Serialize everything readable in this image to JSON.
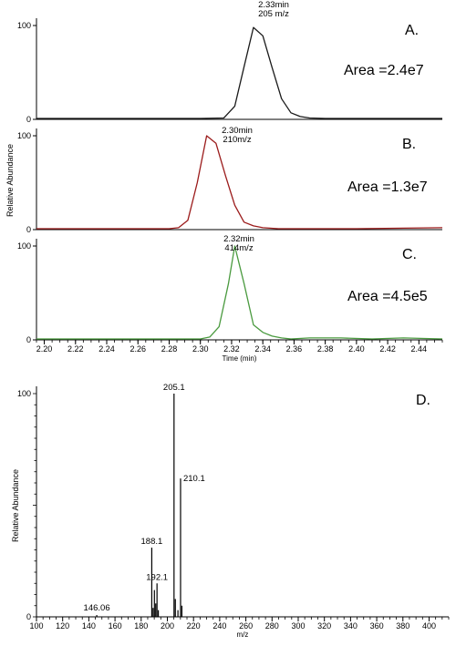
{
  "chart_data": [
    {
      "panel": "A.",
      "type": "line",
      "color": "#1a1a1a",
      "xlim": [
        2.195,
        2.455
      ],
      "ylim": [
        0,
        100
      ],
      "yticks": [
        0,
        100
      ],
      "ytick_labels": [
        "0",
        "100"
      ],
      "x": [
        2.195,
        2.3,
        2.315,
        2.322,
        2.328,
        2.334,
        2.34,
        2.346,
        2.352,
        2.358,
        2.364,
        2.37,
        2.38,
        2.4,
        2.455
      ],
      "y": [
        1,
        1,
        1.5,
        14,
        56,
        98,
        89,
        55,
        22,
        7,
        3,
        1.5,
        1,
        1,
        1
      ],
      "peak_label": [
        "2.33min",
        "205 m/z"
      ],
      "area_label": "Area =2.4e7"
    },
    {
      "panel": "B.",
      "type": "line",
      "color": "#9b1b1b",
      "xlim": [
        2.195,
        2.455
      ],
      "ylim": [
        0,
        100
      ],
      "yticks": [
        0,
        100
      ],
      "ytick_labels": [
        "0",
        "100"
      ],
      "x": [
        2.195,
        2.28,
        2.286,
        2.292,
        2.298,
        2.304,
        2.31,
        2.316,
        2.322,
        2.328,
        2.334,
        2.34,
        2.35,
        2.36,
        2.4,
        2.455
      ],
      "y": [
        1,
        1,
        2,
        10,
        50,
        100,
        92,
        58,
        26,
        8,
        4,
        2,
        1,
        1,
        1,
        2
      ],
      "peak_label": [
        "2.30min",
        "210m/z"
      ],
      "area_label": "Area =1.3e7"
    },
    {
      "panel": "C.",
      "type": "line",
      "color": "#4a9a3f",
      "xlim": [
        2.195,
        2.455
      ],
      "ylim": [
        0,
        100
      ],
      "yticks": [
        0,
        100
      ],
      "ytick_labels": [
        "0",
        "100"
      ],
      "x": [
        2.195,
        2.3,
        2.306,
        2.312,
        2.318,
        2.322,
        2.328,
        2.334,
        2.34,
        2.346,
        2.352,
        2.358,
        2.37,
        2.39,
        2.41,
        2.43,
        2.455
      ],
      "y": [
        1,
        1,
        3,
        14,
        60,
        100,
        60,
        16,
        8,
        4,
        2,
        1,
        2,
        2,
        1,
        2,
        1
      ],
      "peak_label": [
        "2.32min",
        "414m/z"
      ],
      "area_label": "Area =4.5e5",
      "xlabel": "Time (min)",
      "xticks": [
        2.2,
        2.22,
        2.24,
        2.26,
        2.28,
        2.3,
        2.32,
        2.34,
        2.36,
        2.38,
        2.4,
        2.42,
        2.44
      ],
      "xtick_labels": [
        "2.20",
        "2.22",
        "2.24",
        "2.26",
        "2.28",
        "2.30",
        "2.32",
        "2.34",
        "2.36",
        "2.38",
        "2.40",
        "2.42",
        "2.44"
      ]
    },
    {
      "panel": "D.",
      "type": "bar",
      "color": "#000000",
      "xlim": [
        100,
        415
      ],
      "ylim": [
        0,
        100
      ],
      "yticks": [
        0,
        100
      ],
      "ytick_labels": [
        "0",
        "100"
      ],
      "xlabel": "m/z",
      "ylabel": "Relative Abundance",
      "xticks": [
        100,
        120,
        140,
        160,
        180,
        200,
        220,
        240,
        260,
        280,
        300,
        320,
        340,
        360,
        380,
        400
      ],
      "xtick_labels": [
        "100",
        "120",
        "140",
        "160",
        "180",
        "200",
        "220",
        "240",
        "260",
        "280",
        "300",
        "320",
        "340",
        "360",
        "380",
        "400"
      ],
      "peaks": [
        {
          "mz": 146.06,
          "intensity": 0.8,
          "label": "146.06"
        },
        {
          "mz": 188.1,
          "intensity": 31,
          "label": "188.1"
        },
        {
          "mz": 189.1,
          "intensity": 4
        },
        {
          "mz": 190.1,
          "intensity": 12
        },
        {
          "mz": 191.1,
          "intensity": 6
        },
        {
          "mz": 192.1,
          "intensity": 15,
          "label": "192.1"
        },
        {
          "mz": 193.1,
          "intensity": 3
        },
        {
          "mz": 205.1,
          "intensity": 100,
          "label": "205.1"
        },
        {
          "mz": 206.1,
          "intensity": 8
        },
        {
          "mz": 208.1,
          "intensity": 3
        },
        {
          "mz": 210.1,
          "intensity": 62,
          "label": "210.1"
        },
        {
          "mz": 211.1,
          "intensity": 5
        }
      ]
    }
  ],
  "chromatogram_ylabel": "Relative Abundance"
}
